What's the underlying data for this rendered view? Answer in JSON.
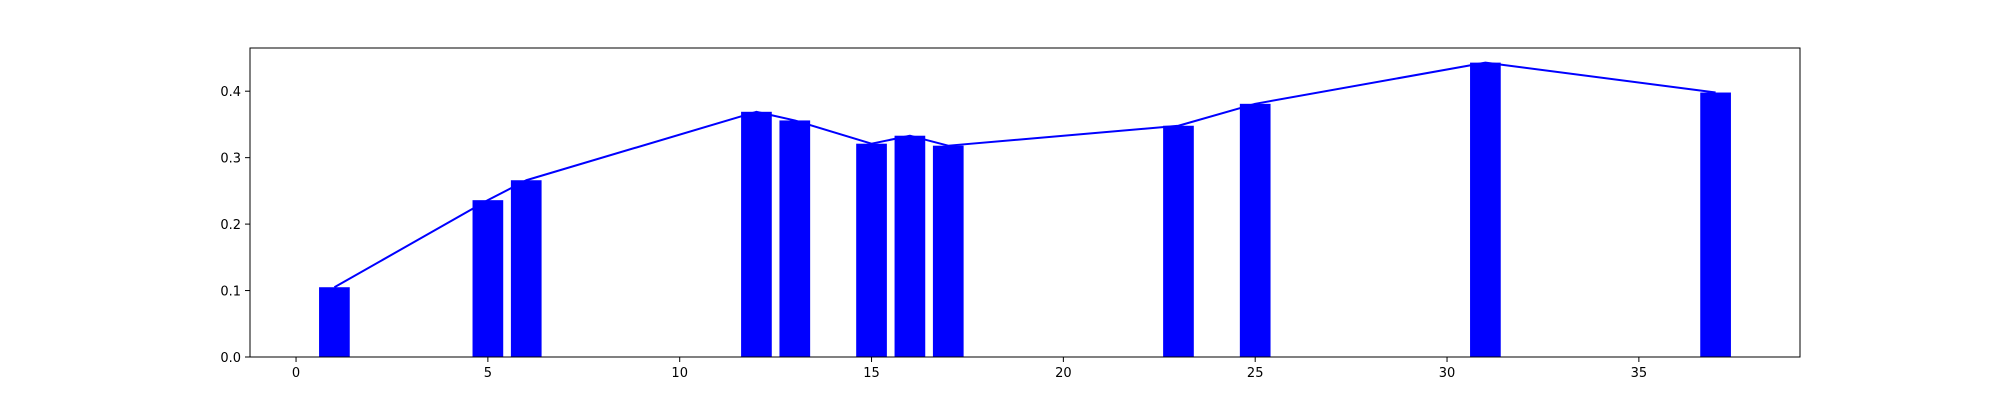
{
  "chart_data": {
    "type": "bar",
    "title": "",
    "xlabel": "",
    "ylabel": "",
    "xlim": [
      -1.2,
      39.2
    ],
    "ylim": [
      0,
      0.465
    ],
    "x_ticks": [
      0,
      5,
      10,
      15,
      20,
      25,
      30,
      35
    ],
    "x_tick_labels": [
      "0",
      "5",
      "10",
      "15",
      "20",
      "25",
      "30",
      "35"
    ],
    "y_ticks": [
      0.0,
      0.1,
      0.2,
      0.3,
      0.4
    ],
    "y_tick_labels": [
      "0.0",
      "0.1",
      "0.2",
      "0.3",
      "0.4"
    ],
    "grid": false,
    "legend": "none",
    "bar_color": "#0000ff",
    "line_color": "#0000ff",
    "x": [
      1,
      5,
      6,
      12,
      13,
      15,
      16,
      17,
      23,
      25,
      31,
      37
    ],
    "values": [
      0.105,
      0.236,
      0.266,
      0.369,
      0.356,
      0.321,
      0.333,
      0.318,
      0.348,
      0.381,
      0.443,
      0.398
    ],
    "series": [
      {
        "type": "bar",
        "x": [
          1,
          5,
          6,
          12,
          13,
          15,
          16,
          17,
          23,
          25,
          31,
          37
        ],
        "values": [
          0.105,
          0.236,
          0.266,
          0.369,
          0.356,
          0.321,
          0.333,
          0.318,
          0.348,
          0.381,
          0.443,
          0.398
        ]
      },
      {
        "type": "line",
        "x": [
          1,
          5,
          6,
          12,
          13,
          15,
          16,
          17,
          23,
          25,
          31,
          37
        ],
        "values": [
          0.105,
          0.236,
          0.266,
          0.369,
          0.356,
          0.321,
          0.333,
          0.318,
          0.348,
          0.381,
          0.443,
          0.398
        ]
      }
    ]
  }
}
